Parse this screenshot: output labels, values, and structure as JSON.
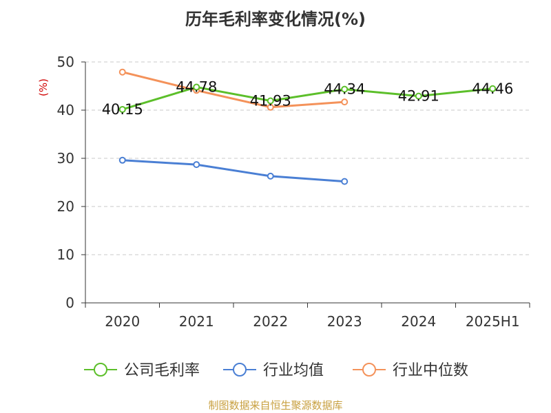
{
  "chart_data": {
    "type": "line",
    "title": "历年毛利率变化情况(%)",
    "ylabel": "(%)",
    "xlabel": "",
    "categories": [
      "2020",
      "2021",
      "2022",
      "2023",
      "2024",
      "2025H1"
    ],
    "ylim": [
      0,
      50
    ],
    "yticks": [
      0,
      10,
      20,
      30,
      40,
      50
    ],
    "grid": "horizontal dashed",
    "legend": "bottom",
    "series": [
      {
        "name": "公司毛利率",
        "color": "#5cbf2a",
        "values": [
          40.15,
          44.78,
          41.93,
          44.34,
          42.91,
          44.46
        ],
        "labels": [
          "40.15",
          "44.78",
          "41.93",
          "44.34",
          "42.91",
          "44.46"
        ]
      },
      {
        "name": "行业均值",
        "color": "#4a7fd4",
        "values": [
          29.6,
          28.7,
          26.3,
          25.2,
          null,
          null
        ]
      },
      {
        "name": "行业中位数",
        "color": "#f4925a",
        "values": [
          47.9,
          44.1,
          40.6,
          41.7,
          null,
          null
        ]
      }
    ]
  },
  "source": "制图数据来自恒生聚源数据库"
}
